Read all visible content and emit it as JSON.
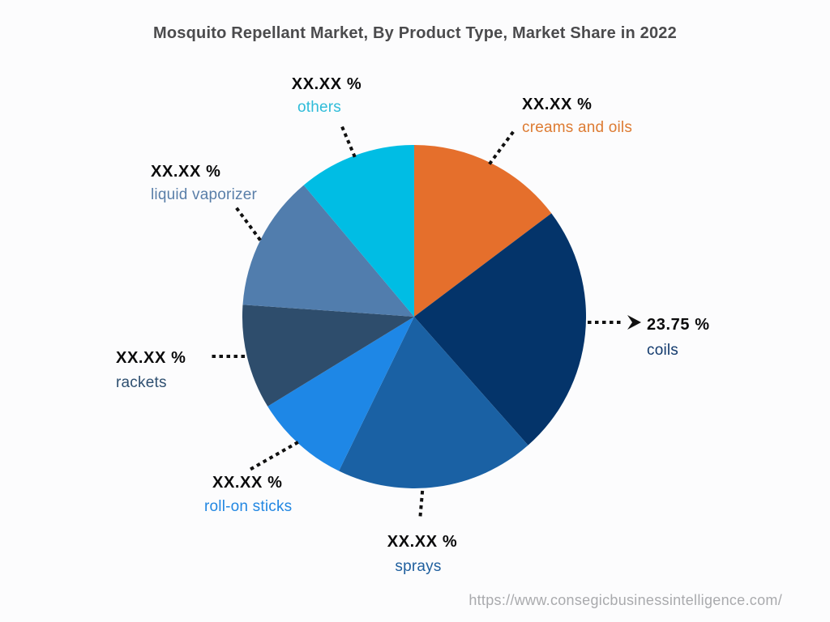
{
  "page": {
    "background": "#fcfcfd"
  },
  "header": {
    "title": "Mosquito Repellant Market, By Product Type, Market Share in 2022"
  },
  "footer": {
    "url": "https://www.consegicbusinessintelligence.com/"
  },
  "chart_data": {
    "type": "pie",
    "title": "Mosquito Repellant Market, By Product Type, Market Share in 2022",
    "direction": "clockwise",
    "start_at_12_oclock": true,
    "value_text_color": "#0b0b0c",
    "leader_line_color": "#111111",
    "segments": [
      {
        "name": "creams and oils",
        "displayed_value": "XX.XX %",
        "share_pct_est": 14.72,
        "start_angle": 0,
        "end_angle": 53,
        "color": "#e56f2c",
        "label_color": "#dd7b32"
      },
      {
        "name": "coils",
        "displayed_value": "23.75 %",
        "share_pct_est": 23.75,
        "start_angle": 53,
        "end_angle": 138.5,
        "color": "#04346a",
        "label_color": "#123a6d"
      },
      {
        "name": "sprays",
        "displayed_value": "XX.XX %",
        "share_pct_est": 18.75,
        "start_angle": 138.5,
        "end_angle": 206,
        "color": "#1a61a4",
        "label_color": "#1f5f9e"
      },
      {
        "name": "roll-on sticks",
        "displayed_value": "XX.XX %",
        "share_pct_est": 9.03,
        "start_angle": 206,
        "end_angle": 238.5,
        "color": "#1e87e6",
        "label_color": "#2287e2"
      },
      {
        "name": "rackets",
        "displayed_value": "XX.XX %",
        "share_pct_est": 9.86,
        "start_angle": 238.5,
        "end_angle": 274,
        "color": "#2e4d6c",
        "label_color": "#2e4f70"
      },
      {
        "name": "liquid vaporizer",
        "displayed_value": "XX.XX %",
        "share_pct_est": 12.78,
        "start_angle": 274,
        "end_angle": 320,
        "color": "#517dad",
        "label_color": "#5a7fa9"
      },
      {
        "name": "others",
        "displayed_value": "XX.XX %",
        "share_pct_est": 11.11,
        "start_angle": 320,
        "end_angle": 360,
        "color": "#00bde4",
        "label_color": "#2fbcd9"
      }
    ]
  }
}
